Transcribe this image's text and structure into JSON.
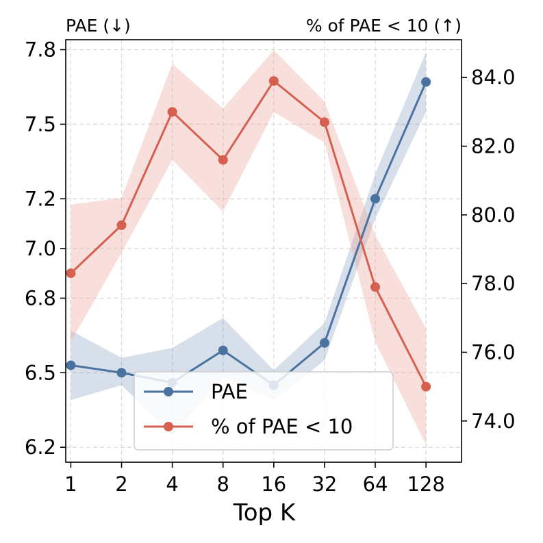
{
  "chart_data": {
    "type": "line",
    "xlabel": "Top K",
    "categories": [
      "1",
      "2",
      "4",
      "8",
      "16",
      "32",
      "64",
      "128"
    ],
    "left_axis": {
      "label": "PAE (↓)",
      "ylim": [
        6.14,
        7.84
      ],
      "ticks": [
        6.2,
        6.5,
        6.8,
        7.0,
        7.2,
        7.5,
        7.8
      ],
      "tick_labels": [
        "6.2",
        "6.5",
        "6.8",
        "7.0",
        "7.2",
        "7.5",
        "7.8"
      ]
    },
    "right_axis": {
      "label": "% of PAE < 10 (↑)",
      "ylim": [
        72.8,
        85.1
      ],
      "ticks": [
        74.0,
        76.0,
        78.0,
        80.0,
        82.0,
        84.0
      ],
      "tick_labels": [
        "74.0",
        "76.0",
        "78.0",
        "80.0",
        "82.0",
        "84.0"
      ]
    },
    "series": [
      {
        "name": "PAE",
        "axis": "left",
        "color": "#4a72a0",
        "band_color": "#4a72a0",
        "values": [
          6.53,
          6.5,
          6.46,
          6.59,
          6.45,
          6.62,
          7.2,
          7.67
        ],
        "lower": [
          6.39,
          6.45,
          6.25,
          6.48,
          6.39,
          6.55,
          7.12,
          7.55
        ],
        "upper": [
          6.67,
          6.56,
          6.6,
          6.72,
          6.51,
          6.7,
          7.3,
          7.79
        ]
      },
      {
        "name": "% of PAE < 10",
        "axis": "right",
        "color": "#d65f50",
        "band_color": "#e89a90",
        "values": [
          78.3,
          79.7,
          83.0,
          81.6,
          83.9,
          82.7,
          77.9,
          75.0
        ],
        "lower": [
          76.3,
          78.9,
          81.6,
          80.1,
          83.0,
          82.1,
          76.3,
          73.3
        ],
        "upper": [
          80.3,
          80.5,
          84.4,
          83.1,
          84.8,
          83.3,
          79.4,
          76.7
        ]
      }
    ],
    "legend": {
      "position": "bottom-center",
      "entries": [
        "PAE",
        "% of PAE < 10"
      ]
    },
    "grid": true
  }
}
